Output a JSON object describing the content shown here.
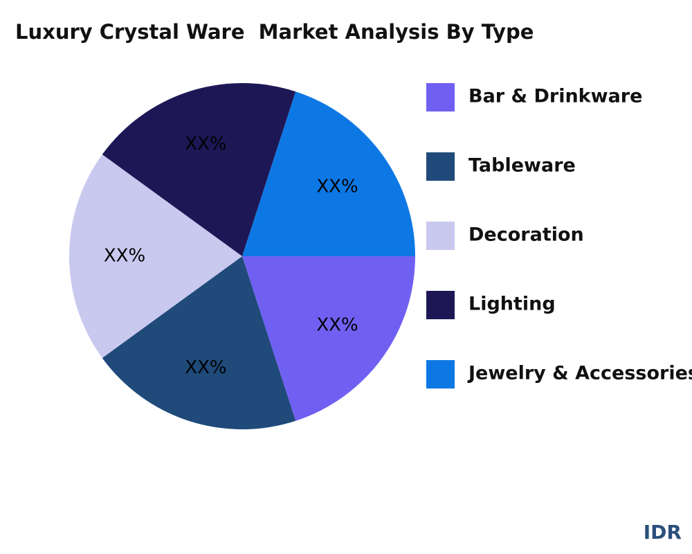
{
  "chart_data": {
    "type": "pie",
    "title": "Luxury Crystal Ware  Market Analysis By Type",
    "categories": [
      "Bar & Drinkware",
      "Tableware",
      "Decoration",
      "Lighting",
      "Jewelry & Accessories"
    ],
    "values": [
      20,
      20,
      20,
      20,
      20
    ],
    "value_labels": [
      "XX%",
      "XX%",
      "XX%",
      "XX%",
      "XX%"
    ],
    "colors": [
      "#7060f2",
      "#1f4a7a",
      "#c9c8ef",
      "#1e1756",
      "#0d78e4"
    ],
    "legend": "right"
  },
  "watermark": "IDR"
}
